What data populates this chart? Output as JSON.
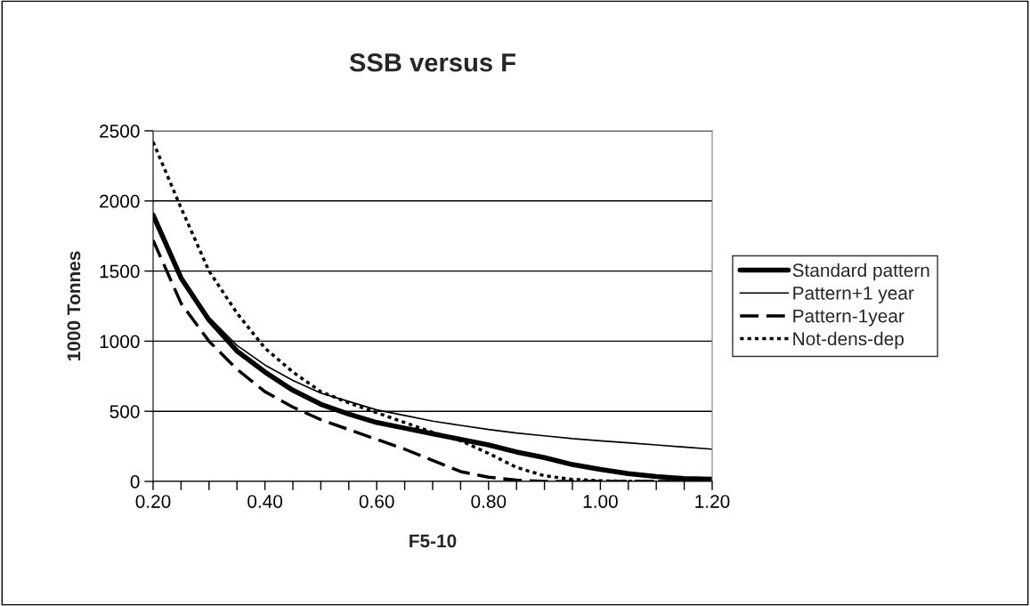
{
  "chart_data": {
    "type": "line",
    "title": "SSB versus F",
    "xlabel": "F5-10",
    "ylabel": "1000 Tonnes",
    "x": [
      0.2,
      0.25,
      0.3,
      0.35,
      0.4,
      0.45,
      0.5,
      0.55,
      0.6,
      0.65,
      0.7,
      0.75,
      0.8,
      0.85,
      0.9,
      0.95,
      1.0,
      1.05,
      1.1,
      1.15,
      1.2
    ],
    "series": [
      {
        "name": "Standard pattern",
        "color": "#000000",
        "line_style": "solid",
        "values": [
          1900,
          1450,
          1150,
          930,
          780,
          650,
          550,
          480,
          420,
          380,
          340,
          300,
          260,
          210,
          170,
          120,
          85,
          55,
          35,
          20,
          15
        ]
      },
      {
        "name": "Pattern+1 year",
        "color": "#000000",
        "line_style": "solid",
        "values": [
          1870,
          1440,
          1170,
          970,
          830,
          720,
          630,
          570,
          510,
          470,
          430,
          400,
          370,
          345,
          325,
          305,
          290,
          275,
          260,
          245,
          230
        ]
      },
      {
        "name": "Pattern-1year",
        "color": "#000000",
        "line_style": "dashed",
        "values": [
          1720,
          1270,
          1000,
          800,
          640,
          530,
          440,
          370,
          300,
          230,
          150,
          70,
          30,
          10,
          0,
          0,
          0,
          0,
          0,
          0,
          0
        ]
      },
      {
        "name": "Not-dens-dep",
        "color": "#000000",
        "line_style": "dotted",
        "values": [
          2420,
          1950,
          1500,
          1200,
          950,
          780,
          640,
          560,
          490,
          420,
          350,
          290,
          200,
          100,
          40,
          15,
          5,
          0,
          0,
          0,
          0
        ]
      }
    ],
    "xlim": [
      0.2,
      1.2
    ],
    "xticks": [
      {
        "value": 0.2,
        "label": "0.20"
      },
      {
        "value": 0.25,
        "label": null
      },
      {
        "value": 0.3,
        "label": null
      },
      {
        "value": 0.35,
        "label": null
      },
      {
        "value": 0.4,
        "label": "0.40"
      },
      {
        "value": 0.45,
        "label": null
      },
      {
        "value": 0.5,
        "label": null
      },
      {
        "value": 0.55,
        "label": null
      },
      {
        "value": 0.6,
        "label": "0.60"
      },
      {
        "value": 0.65,
        "label": null
      },
      {
        "value": 0.7,
        "label": null
      },
      {
        "value": 0.75,
        "label": null
      },
      {
        "value": 0.8,
        "label": "0.80"
      },
      {
        "value": 0.85,
        "label": null
      },
      {
        "value": 0.9,
        "label": null
      },
      {
        "value": 0.95,
        "label": null
      },
      {
        "value": 1.0,
        "label": "1.00"
      },
      {
        "value": 1.05,
        "label": null
      },
      {
        "value": 1.1,
        "label": null
      },
      {
        "value": 1.15,
        "label": null
      },
      {
        "value": 1.2,
        "label": "1.20"
      }
    ],
    "ylim": [
      0,
      2500
    ],
    "yticks": [
      0,
      500,
      1000,
      1500,
      2000,
      2500
    ],
    "grid": "y",
    "legend": "right"
  }
}
